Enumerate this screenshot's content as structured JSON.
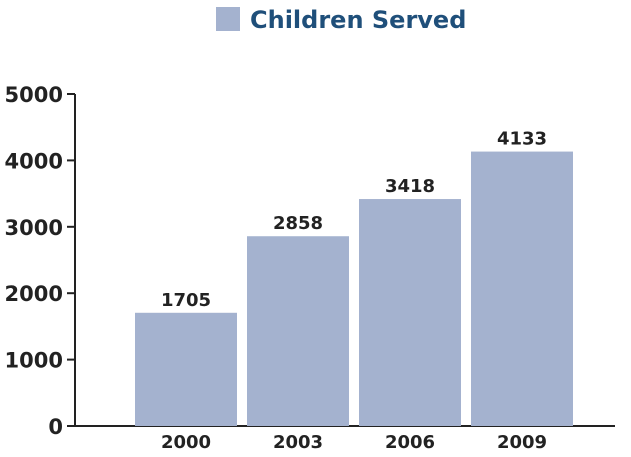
{
  "chart_data": {
    "type": "bar",
    "categories": [
      "2000",
      "2003",
      "2006",
      "2009"
    ],
    "series": [
      {
        "name": "Children Served",
        "values": [
          1705,
          2858,
          3418,
          4133
        ]
      }
    ],
    "ylim": [
      0,
      5000
    ],
    "yticks": [
      "0",
      "1000",
      "2000",
      "3000",
      "4000",
      "5000"
    ],
    "grid": false,
    "legend_position": "top",
    "bar_color": "#a4b2cf",
    "legend_text_color": "#1f4f7a",
    "axis_color": "#222222"
  }
}
